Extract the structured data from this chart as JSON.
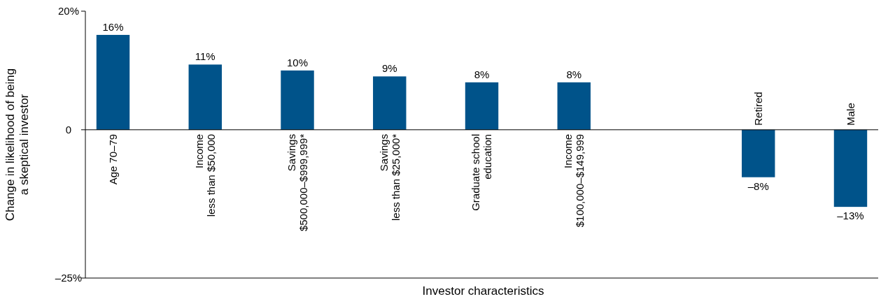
{
  "chart_data": {
    "type": "bar",
    "xlabel": "Investor characteristics",
    "ylabel": "Change in likelihood of being\na skeptical investor",
    "categories": [
      "Age 70–79",
      "Income\nless than $50,000",
      "Savings\n$500,000–$999,999*",
      "Savings\nless than $25,000*",
      "Graduate school\neducation",
      "Income\n$100,000–$149,999",
      null,
      "Retired",
      "Male"
    ],
    "values": [
      16,
      11,
      10,
      9,
      8,
      8,
      null,
      -8,
      -13
    ],
    "value_labels": [
      "16%",
      "11%",
      "10%",
      "9%",
      "8%",
      "8%",
      null,
      "–8%",
      "–13%"
    ],
    "color": "#00538a",
    "ylim": [
      -25,
      20
    ],
    "yticks": [
      {
        "value": 20,
        "label": "20%"
      },
      0,
      {
        "value": -25,
        "label": "–25%"
      }
    ],
    "grid": false
  }
}
